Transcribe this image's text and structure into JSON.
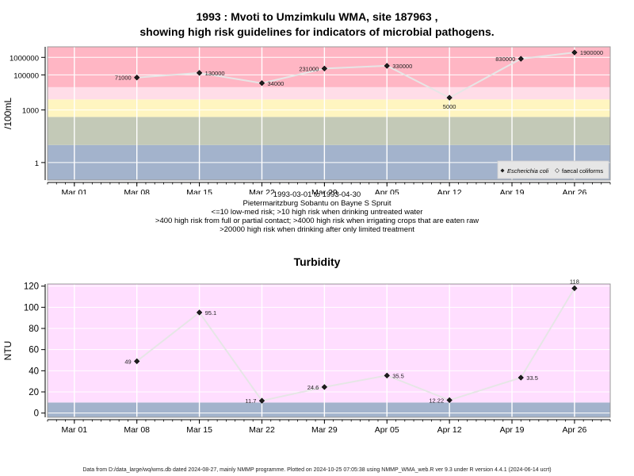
{
  "chart1": {
    "title_line1": "1993 : Mvoti to Umzimkulu WMA, site 187963 ,",
    "title_line2": "showing high risk guidelines for indicators of microbial pathogens.",
    "ylabel": "/100mL",
    "x_tick_labels": [
      "Mar 01",
      "Mar 08",
      "Mar 15",
      "Mar 22",
      "Mar 29",
      "Apr 05",
      "Apr 12",
      "Apr 19",
      "Apr 26"
    ],
    "caption_lines": [
      "1993-03-01 to 1993-04-30",
      "Pietermaritzburg Sobantu on Bayne S Spruit",
      "<=10 low-med risk; >10 high risk when drinking untreated water",
      ">400 high risk from full or partial contact; >4000 high risk when irrigating crops that are eaten raw",
      ">20000 high risk when drinking after only limited treatment"
    ],
    "legend": [
      {
        "label": "Escherichia coli",
        "marker": "filled-diamond",
        "italic": true
      },
      {
        "label": "faecal coliforms",
        "marker": "open-diamond",
        "italic": false
      }
    ]
  },
  "chart2": {
    "title": "Turbidity",
    "ylabel": "NTU",
    "x_tick_labels": [
      "Mar 01",
      "Mar 08",
      "Mar 15",
      "Mar 22",
      "Mar 29",
      "Apr 05",
      "Apr 12",
      "Apr 19",
      "Apr 26"
    ]
  },
  "footer": "Data from D:/data_large/wq/wms.db dated 2024-08-27, mainly NMMP programme. Plotted on 2024-10-25 07:05:38 using NMMP_WMA_web.R ver 9.3 under R version 4.4.1 (2024-06-14 ucrt)",
  "chart_data": [
    {
      "type": "scatter",
      "scale": "log",
      "title": "1993 : Mvoti to Umzimkulu WMA, site 187963 , showing high risk guidelines for indicators of microbial pathogens.",
      "ylabel": "/100mL",
      "x_range": [
        "1993-02-26",
        "1993-04-30"
      ],
      "ylim": [
        0.1,
        4000000
      ],
      "yticks": [
        1,
        1000,
        100000,
        1000000
      ],
      "ytick_labels": [
        "1",
        "1000",
        "100000",
        "1000000"
      ],
      "grid": true,
      "legend_position": "bottom-right",
      "bands": [
        {
          "from": 0.1,
          "to": 10,
          "color": "#a3b3cc"
        },
        {
          "from": 10,
          "to": 400,
          "color": "#c3c9b7"
        },
        {
          "from": 400,
          "to": 4000,
          "color": "#fff5c0"
        },
        {
          "from": 4000,
          "to": 20000,
          "color": "#ffdde8"
        },
        {
          "from": 20000,
          "to": 4000000,
          "color": "#ffb6c4"
        }
      ],
      "series": [
        {
          "name": "Escherichia coli",
          "x": [
            "1993-03-08",
            "1993-03-15",
            "1993-03-22",
            "1993-03-29",
            "1993-04-05",
            "1993-04-12",
            "1993-04-20",
            "1993-04-26"
          ],
          "values": [
            71000,
            130000,
            34000,
            231000,
            330000,
            5000,
            830000,
            1900000
          ],
          "labels": [
            "71000",
            "130000",
            "34000",
            "231000",
            "330000",
            "5000",
            "830000",
            "1900000"
          ],
          "label_side": [
            "left",
            "right",
            "right",
            "left",
            "right",
            "below",
            "left",
            "right"
          ]
        }
      ]
    },
    {
      "type": "scatter",
      "title": "Turbidity",
      "ylabel": "NTU",
      "x_range": [
        "1993-02-26",
        "1993-04-30"
      ],
      "ylim": [
        -4,
        122
      ],
      "yticks": [
        0,
        20,
        40,
        60,
        80,
        100,
        120
      ],
      "grid": true,
      "bands": [
        {
          "from": -4,
          "to": 10,
          "color": "#a3b3cc"
        },
        {
          "from": 10,
          "to": 122,
          "color": "#ffdeff"
        }
      ],
      "series": [
        {
          "x": [
            "1993-03-08",
            "1993-03-15",
            "1993-03-22",
            "1993-03-29",
            "1993-04-05",
            "1993-04-12",
            "1993-04-20",
            "1993-04-26"
          ],
          "values": [
            49,
            95.1,
            11.7,
            24.6,
            35.5,
            12.22,
            33.5,
            118
          ],
          "labels": [
            "49",
            "95.1",
            "11.7",
            "24.6",
            "35.5",
            "12.22",
            "33.5",
            "118"
          ],
          "label_side": [
            "left",
            "right",
            "left",
            "left",
            "right",
            "left",
            "right",
            "above"
          ]
        }
      ]
    }
  ]
}
